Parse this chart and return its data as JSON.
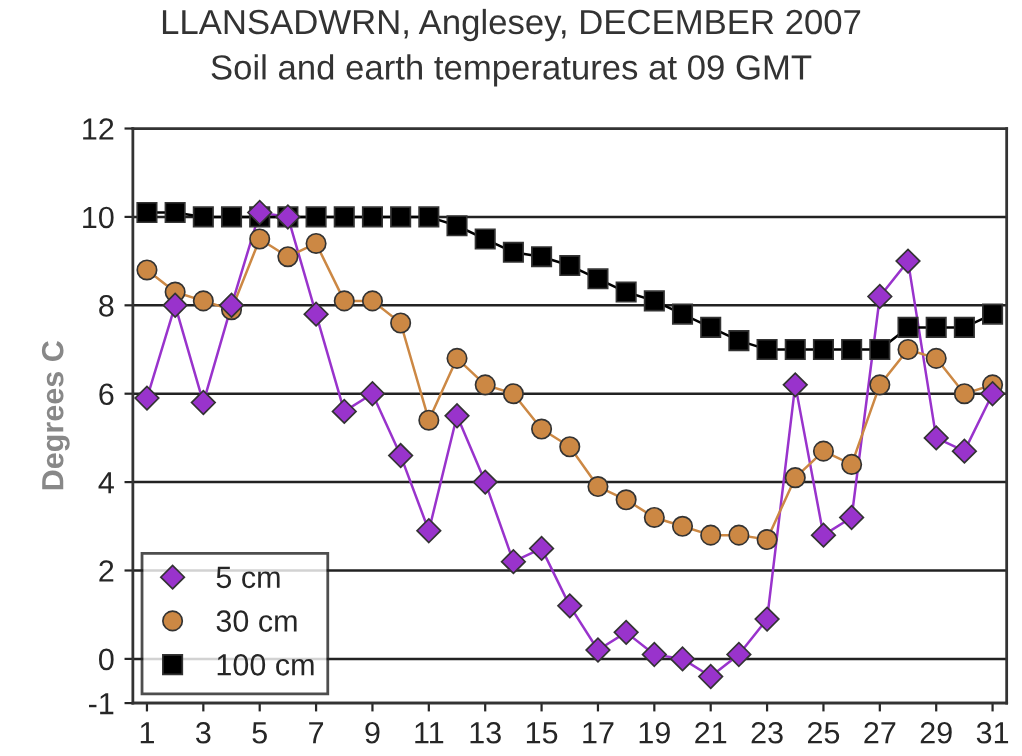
{
  "chart_data": {
    "type": "line",
    "title": "LLANSADWRN, Anglesey, DECEMBER 2007",
    "subtitle": "Soil and earth temperatures at 09 GMT",
    "ylabel": "Degrees C",
    "x": [
      1,
      2,
      3,
      4,
      5,
      6,
      7,
      8,
      9,
      10,
      11,
      12,
      13,
      14,
      15,
      16,
      17,
      18,
      19,
      20,
      21,
      22,
      23,
      24,
      25,
      26,
      27,
      28,
      29,
      30,
      31
    ],
    "series": [
      {
        "name": "5 cm",
        "color": "#9933cc",
        "marker": "diamond",
        "values": [
          5.9,
          8.0,
          5.8,
          8.0,
          10.1,
          10.0,
          7.8,
          5.6,
          6.0,
          4.6,
          2.9,
          5.5,
          4.0,
          2.2,
          2.5,
          1.2,
          0.2,
          0.6,
          0.1,
          0.0,
          -0.4,
          0.1,
          0.9,
          6.2,
          2.8,
          3.2,
          8.2,
          9.0,
          5.0,
          4.7,
          6.0
        ]
      },
      {
        "name": "30 cm",
        "color": "#cc8844",
        "marker": "circle",
        "values": [
          8.8,
          8.3,
          8.1,
          7.9,
          9.5,
          9.1,
          9.4,
          8.1,
          8.1,
          7.6,
          5.4,
          6.8,
          6.2,
          6.0,
          5.2,
          4.8,
          3.9,
          3.6,
          3.2,
          3.0,
          2.8,
          2.8,
          2.7,
          4.1,
          4.7,
          4.4,
          6.2,
          7.0,
          6.8,
          6.0,
          6.2
        ]
      },
      {
        "name": "100 cm",
        "color": "#000000",
        "marker": "square",
        "values": [
          10.1,
          10.1,
          10.0,
          10.0,
          10.0,
          10.0,
          10.0,
          10.0,
          10.0,
          10.0,
          10.0,
          9.8,
          9.5,
          9.2,
          9.1,
          8.9,
          8.6,
          8.3,
          8.1,
          7.8,
          7.5,
          7.2,
          7.0,
          7.0,
          7.0,
          7.0,
          7.0,
          7.5,
          7.5,
          7.5,
          7.8
        ]
      }
    ],
    "xlim": [
      0.5,
      31.5
    ],
    "xticks": [
      1,
      3,
      5,
      7,
      9,
      11,
      13,
      15,
      17,
      19,
      21,
      23,
      25,
      27,
      29,
      31
    ],
    "ylim": [
      -1,
      12
    ],
    "yticks": [
      -1,
      0,
      2,
      4,
      6,
      8,
      10,
      12
    ],
    "grid": "y",
    "legend": "bottom left"
  }
}
